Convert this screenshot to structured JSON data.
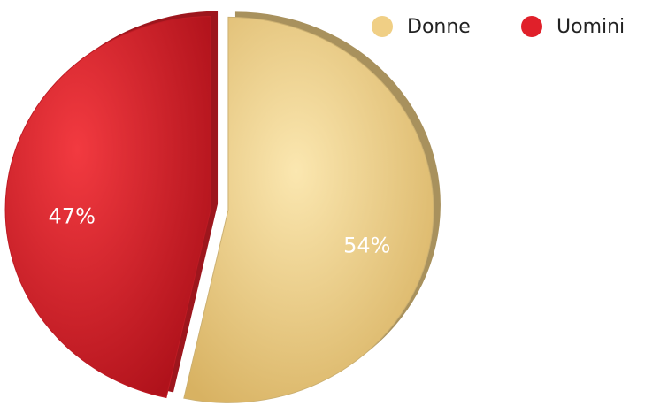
{
  "chart_data": {
    "type": "pie",
    "categories": [
      "Donne",
      "Uomini"
    ],
    "values": [
      54,
      47
    ],
    "value_labels": [
      "54%",
      "47%"
    ],
    "colors": [
      "#f0cf85",
      "#e0202a"
    ],
    "legend": "top-right"
  }
}
